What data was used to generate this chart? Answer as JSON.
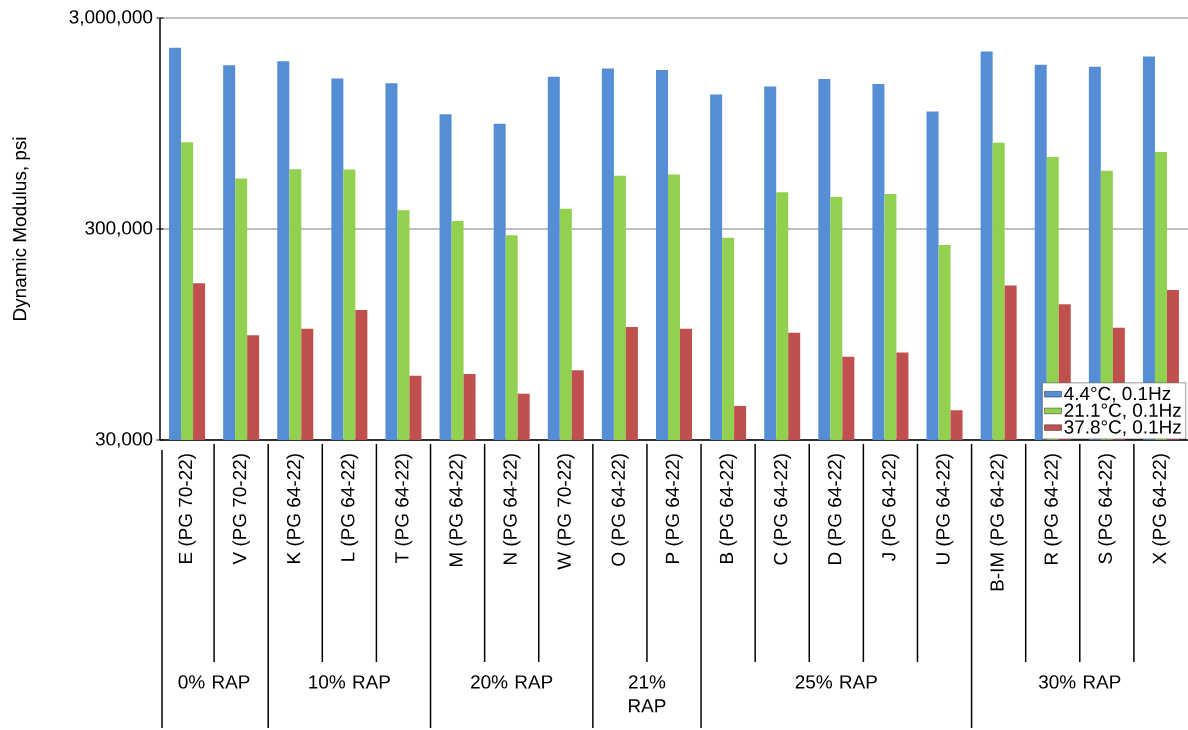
{
  "chart_data": {
    "type": "bar",
    "ylabel": "Dynamic Modulus, psi",
    "categories": [
      "E (PG 70-22)",
      "V (PG 70-22)",
      "K (PG 64-22)",
      "L (PG 64-22)",
      "T (PG 64-22)",
      "M (PG 64-22)",
      "N (PG 64-22)",
      "W (PG 70-22)",
      "O (PG 64-22)",
      "P (PG 64-22)",
      "B (PG 64-22)",
      "C (PG 64-22)",
      "D (PG 64-22)",
      "J (PG 64-22)",
      "U (PG 64-22)",
      "B-IM (PG 64-22)",
      "R (PG 64-22)",
      "S (PG 64-22)",
      "X (PG 64-22)"
    ],
    "series": [
      {
        "name": "4.4°C, 0.1Hz",
        "color": "#558ed5",
        "values": [
          2170000,
          1790000,
          1870000,
          1550000,
          1470000,
          1050000,
          947000,
          1580000,
          1730000,
          1700000,
          1300000,
          1420000,
          1540000,
          1460000,
          1080000,
          2080000,
          1800000,
          1760000,
          1970000
        ]
      },
      {
        "name": "21.1°C, 0.1Hz",
        "color": "#92d050",
        "values": [
          773000,
          521000,
          576000,
          574000,
          368000,
          327000,
          280000,
          374000,
          537000,
          543000,
          273000,
          448000,
          425000,
          440000,
          252000,
          770000,
          658000,
          567000,
          695000
        ]
      },
      {
        "name": "37.8°C, 0.1Hz",
        "color": "#c0504d",
        "values": [
          166000,
          94000,
          101000,
          124000,
          60500,
          61700,
          49700,
          64200,
          103000,
          101000,
          43500,
          96800,
          74400,
          78000,
          41500,
          162000,
          132000,
          102000,
          154000
        ]
      }
    ],
    "annotations": [
      "0% RAP",
      "10% RAP",
      "20% RAP",
      "21% RAP",
      "25% RAP",
      "30% RAP"
    ],
    "log": "y",
    "ylim": [
      30000,
      3000000
    ],
    "yticks": [
      {
        "value": 30000,
        "label": "30,000"
      },
      {
        "value": 300000,
        "label": "300,000"
      },
      {
        "value": 3000000,
        "label": "3,000,000"
      }
    ],
    "grid": "y",
    "legend": "bottom right"
  }
}
